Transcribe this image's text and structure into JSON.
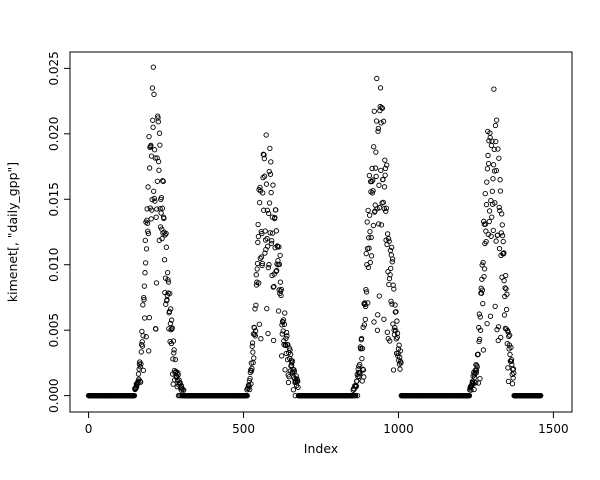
{
  "window": {
    "background": "#ffffff",
    "foreground": "#000000"
  },
  "chart_data": {
    "type": "scatter",
    "title": "",
    "xlabel": "Index",
    "ylabel": "kimenet[, \"daily_gpp\"]",
    "xlim": [
      0,
      1500
    ],
    "ylim": [
      0,
      0.025
    ],
    "x_ticks": [
      0,
      500,
      1000,
      1500
    ],
    "x_tick_labels": [
      "0",
      "500",
      "1000",
      "1500"
    ],
    "y_ticks": [
      0,
      0.005,
      0.01,
      0.015,
      0.02,
      0.025
    ],
    "y_tick_labels": [
      "0.000",
      "0.005",
      "0.010",
      "0.015",
      "0.020",
      "0.025"
    ],
    "grid": false,
    "legend": "none",
    "marker": {
      "shape": "open-circle",
      "color": "#000000",
      "radius": 2.2,
      "stroke_width": 0.9
    },
    "n_points": 1460,
    "seed": 7,
    "baseline_value": 0,
    "seasons": [
      {
        "rise_start": 148,
        "peak_x": 210,
        "peak_y": 0.0252,
        "sigma_left": 22,
        "sigma_right": 34,
        "end": 308
      },
      {
        "rise_start": 505,
        "peak_x": 565,
        "peak_y": 0.0205,
        "sigma_left": 20,
        "sigma_right": 46,
        "end": 678
      },
      {
        "rise_start": 852,
        "peak_x": 930,
        "peak_y": 0.0252,
        "sigma_left": 27,
        "sigma_right": 38,
        "end": 1008
      },
      {
        "rise_start": 1228,
        "peak_x": 1305,
        "peak_y": 0.0246,
        "sigma_left": 27,
        "sigma_right": 30,
        "end": 1372
      }
    ],
    "description": "Four annual growing-season peaks of daily GPP across ~1460 daily indices; values are zero outside the growing seasons, rising to peaks of about 0.020-0.025 near indices 210, 565, 930 and 1305."
  }
}
